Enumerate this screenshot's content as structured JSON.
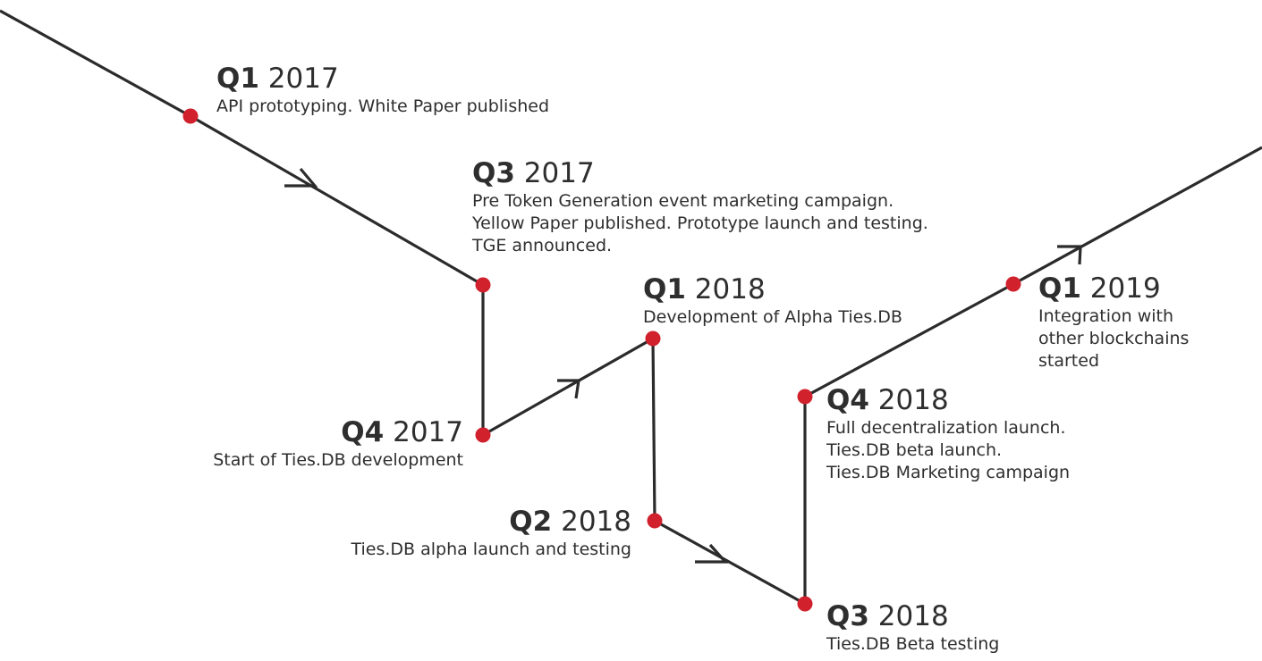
{
  "colors": {
    "line": "#2b2b2b",
    "dot": "#d0212d",
    "text": "#2e2e2e"
  },
  "milestones": [
    {
      "quarter": "Q1",
      "year": "2017",
      "lines": [
        "API prototyping. White Paper published"
      ]
    },
    {
      "quarter": "Q3",
      "year": "2017",
      "lines": [
        "Pre Token Generation event marketing campaign.",
        "Yellow Paper published. Prototype launch and testing.",
        "TGE announced."
      ]
    },
    {
      "quarter": "Q4",
      "year": "2017",
      "lines": [
        "Start of Ties.DB development"
      ]
    },
    {
      "quarter": "Q1",
      "year": "2018",
      "lines": [
        "Development of Alpha Ties.DB"
      ]
    },
    {
      "quarter": "Q2",
      "year": "2018",
      "lines": [
        "Ties.DB alpha launch and testing"
      ]
    },
    {
      "quarter": "Q3",
      "year": "2018",
      "lines": [
        "Ties.DB Beta testing"
      ]
    },
    {
      "quarter": "Q4",
      "year": "2018",
      "lines": [
        "Full decentralization launch.",
        "Ties.DB beta launch.",
        "Ties.DB Marketing campaign"
      ]
    },
    {
      "quarter": "Q1",
      "year": "2019",
      "lines": [
        "Integration with",
        "other blockchains",
        "started"
      ]
    }
  ]
}
